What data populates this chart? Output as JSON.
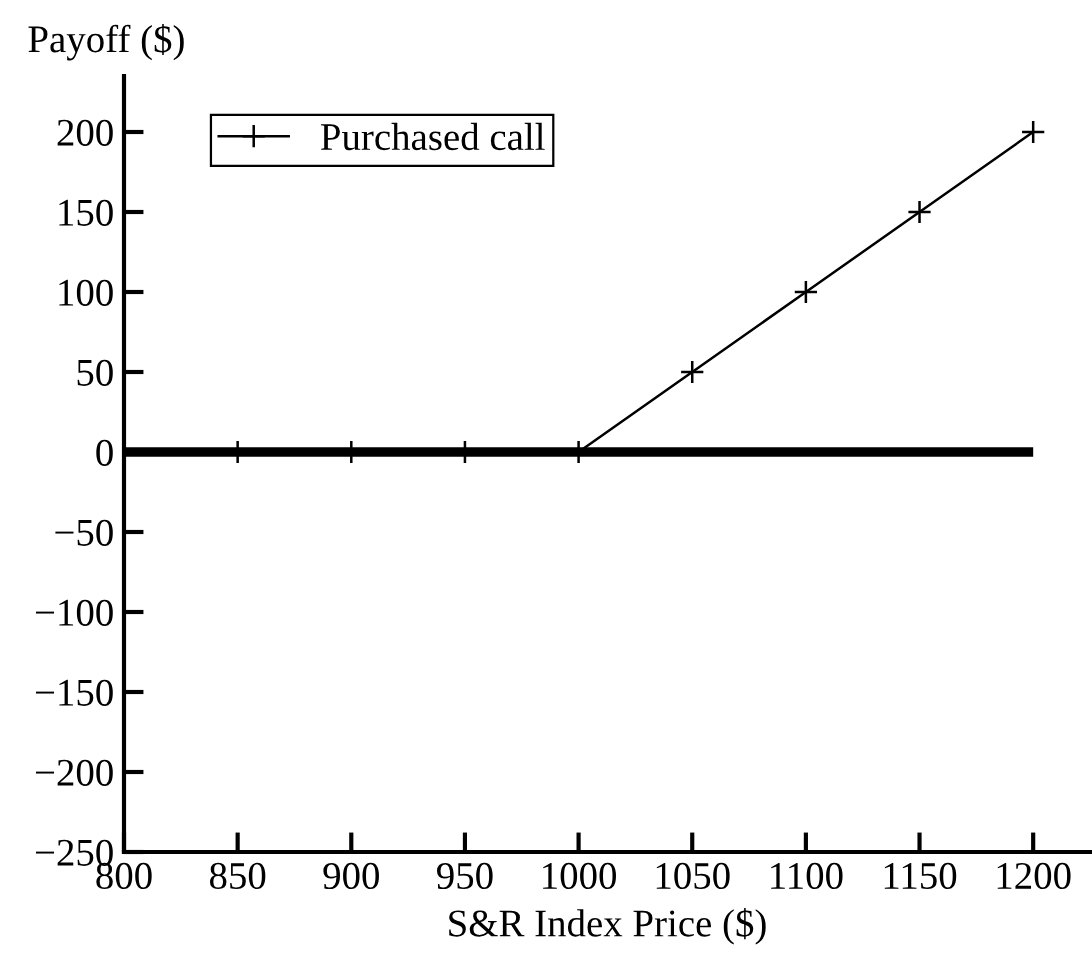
{
  "chart_data": {
    "type": "line",
    "xlabel": "S&R Index Price ($)",
    "ylabel": "Payoff ($)",
    "series": [
      {
        "name": "Purchased call",
        "color": "#000000",
        "x": [
          850,
          900,
          950,
          1000,
          1050,
          1100,
          1150,
          1200
        ],
        "values": [
          0,
          0,
          0,
          0,
          50,
          100,
          150,
          200
        ]
      }
    ],
    "marker": "cross",
    "line_style": "solid",
    "xlim": [
      800,
      1225
    ],
    "xticks": [
      800,
      850,
      900,
      950,
      1000,
      1050,
      1100,
      1150,
      1200
    ],
    "ylim": [
      -250,
      235
    ],
    "yticks": [
      -250,
      -200,
      -150,
      -100,
      -50,
      0,
      50,
      100,
      150,
      200
    ],
    "ref_lines": [
      {
        "axis": "y",
        "value": 0,
        "color": "#000000"
      }
    ],
    "legend": "top left",
    "grid": false
  }
}
